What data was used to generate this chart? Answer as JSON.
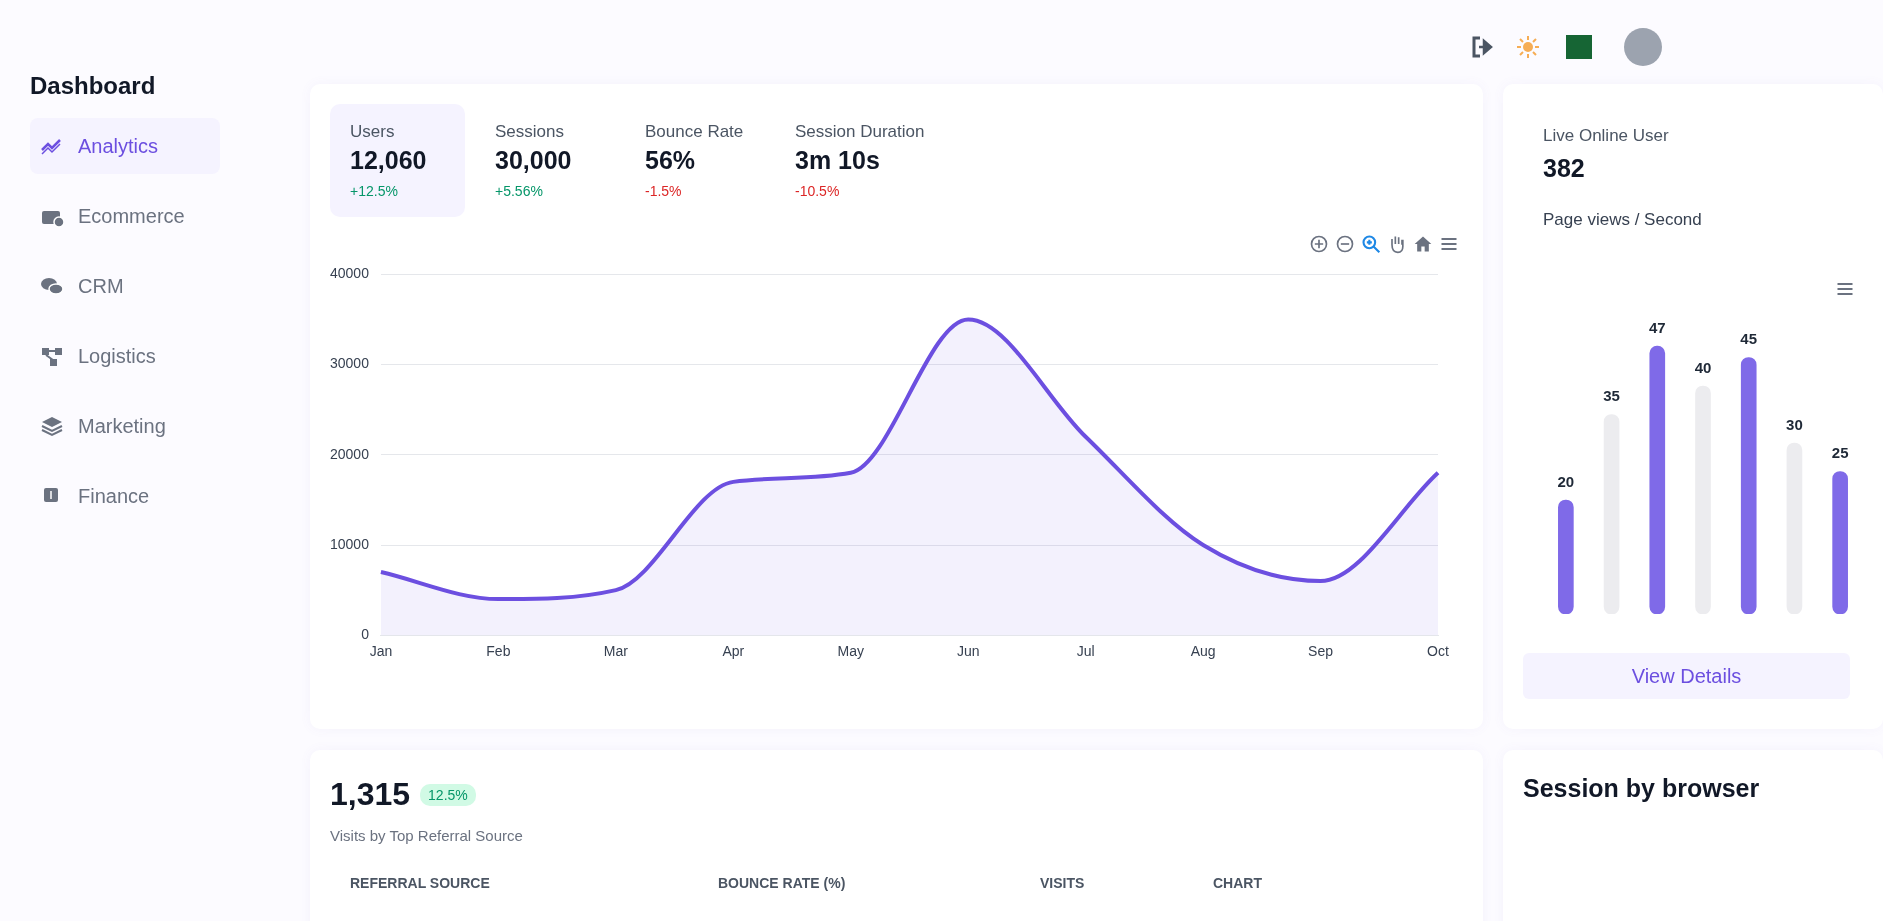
{
  "chart_data": [
    {
      "type": "other",
      "title": "Dashboard",
      "annotations": [
        "Analytics",
        "Ecommerce",
        "CRM",
        "Logistics",
        "Marketing",
        "Finance"
      ]
    },
    {
      "type": "area",
      "categories": [
        "Jan",
        "Feb",
        "Mar",
        "Apr",
        "May",
        "Jun",
        "Jul",
        "Aug",
        "Sep",
        "Oct"
      ],
      "series": [
        {
          "color": "#6c4fe0",
          "values": [
            7000,
            4000,
            5000,
            17000,
            18000,
            35000,
            22000,
            10000,
            6000,
            18000
          ]
        }
      ],
      "ylim": [
        0,
        40000
      ],
      "yticks": [
        0,
        10000,
        20000,
        30000,
        40000
      ],
      "grid": "y",
      "legend": false,
      "marker": "none",
      "line_style": "solid",
      "annotations": [
        "Users",
        "12,060",
        "+12.5%",
        "Sessions",
        "30,000",
        "+5.56%",
        "Bounce Rate",
        "56%",
        "-1.5%",
        "Session Duration",
        "3m 10s",
        "-10.5%"
      ]
    },
    {
      "type": "bar",
      "categories": [
        null,
        null,
        null,
        null,
        null,
        null,
        null
      ],
      "values": [
        20,
        35,
        47,
        40,
        45,
        30,
        25
      ],
      "colors": [
        "#7f6ae8",
        "#ececef",
        "#7f6ae8",
        "#ececef",
        "#7f6ae8",
        "#ececef",
        "#7f6ae8"
      ],
      "data_labels": true,
      "legend": false,
      "annotations": [
        "Live Online User",
        "382",
        "Page views / Second",
        "View Details"
      ]
    },
    {
      "type": "other",
      "annotations": [
        "1,315",
        "12.5%",
        "Visits by Top Referral Source",
        "REFERRAL SOURCE",
        "BOUNCE RATE (%)",
        "VISITS",
        "CHART"
      ]
    },
    {
      "type": "other",
      "title": "Session by browser"
    }
  ]
}
